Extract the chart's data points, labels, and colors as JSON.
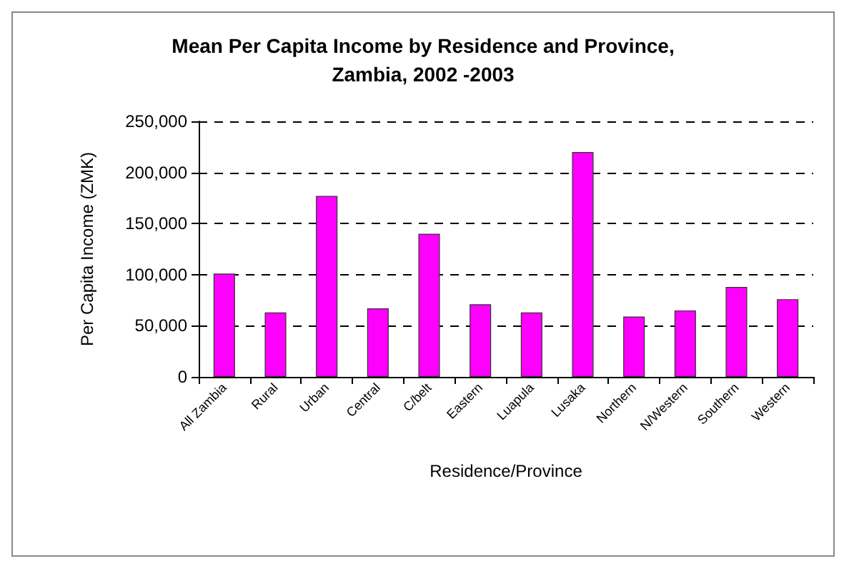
{
  "chart_data": {
    "type": "bar",
    "title": "Mean Per Capita Income by Residence and Province,\nZambia, 2002 -2003",
    "xlabel": "Residence/Province",
    "ylabel": "Per Capita Income (ZMK)",
    "categories": [
      "All Zambia",
      "Rural",
      "Urban",
      "Central",
      "C/belt",
      "Eastern",
      "Luapula",
      "Lusaka",
      "Northern",
      "N/Western",
      "Southern",
      "Western"
    ],
    "values": [
      101000,
      63000,
      177000,
      67000,
      140000,
      71000,
      63000,
      220000,
      59000,
      65000,
      88000,
      76000
    ],
    "color": "#ff00ff",
    "ylim": [
      0,
      250000
    ],
    "yticks": [
      {
        "value": 0,
        "label": "0"
      },
      {
        "value": 50000,
        "label": "50,000"
      },
      {
        "value": 100000,
        "label": "100,000"
      },
      {
        "value": 150000,
        "label": "150,000"
      },
      {
        "value": 200000,
        "label": "200,000"
      },
      {
        "value": 250000,
        "label": "250,000"
      }
    ],
    "grid": "y"
  }
}
